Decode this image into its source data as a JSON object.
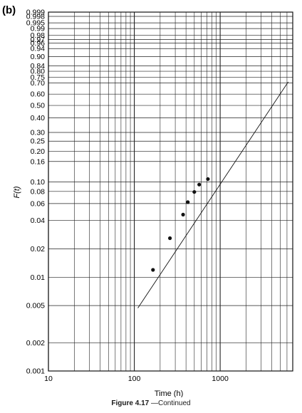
{
  "chart_data": {
    "type": "scatter",
    "panel_label": "(b)",
    "xlabel": "Time (h)",
    "ylabel": "F(t)",
    "x_scale": "log",
    "y_scale": "weibull probability",
    "xlim": [
      10,
      7000
    ],
    "ylim": [
      0.001,
      0.999
    ],
    "grid": true,
    "x_ticks": [
      "10",
      "100",
      "1000"
    ],
    "y_ticks": [
      "0.001",
      "0.002",
      "0.005",
      "0.01",
      "0.02",
      "0.04",
      "0.06",
      "0.08",
      "0.10",
      "0.16",
      "0.20",
      "0.25",
      "0.30",
      "0.40",
      "0.50",
      "0.60",
      "0.70",
      "0.75",
      "0.80",
      "0.84",
      "0.90",
      "0.94",
      "0.96",
      "0.97",
      "0.98",
      "0.99",
      "0.995",
      "0.998",
      "0.999"
    ],
    "y_tick_values": [
      0.001,
      0.002,
      0.005,
      0.01,
      0.02,
      0.04,
      0.06,
      0.08,
      0.1,
      0.16,
      0.2,
      0.25,
      0.3,
      0.4,
      0.5,
      0.6,
      0.7,
      0.75,
      0.8,
      0.84,
      0.9,
      0.94,
      0.96,
      0.97,
      0.98,
      0.99,
      0.995,
      0.998,
      0.999
    ],
    "points": [
      {
        "x": 165,
        "y": 0.012
      },
      {
        "x": 260,
        "y": 0.026
      },
      {
        "x": 370,
        "y": 0.046
      },
      {
        "x": 420,
        "y": 0.062
      },
      {
        "x": 500,
        "y": 0.079
      },
      {
        "x": 570,
        "y": 0.094
      },
      {
        "x": 720,
        "y": 0.107
      }
    ],
    "fit_line": [
      {
        "x": 110,
        "y": 0.0047
      },
      {
        "x": 6200,
        "y": 0.71
      }
    ]
  },
  "caption": {
    "figure": "Figure 4.17",
    "text": "—Continued"
  }
}
